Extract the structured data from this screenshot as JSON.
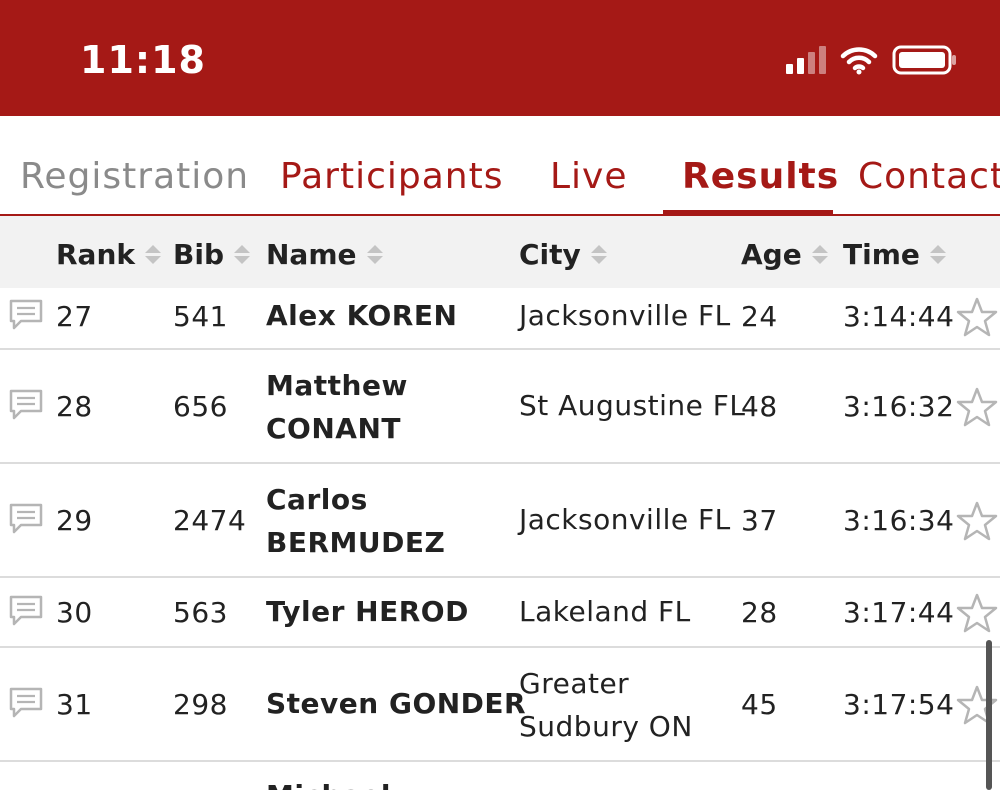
{
  "status_bar": {
    "time": "11:18"
  },
  "tabs": [
    {
      "label": "Registration",
      "state": "inactive"
    },
    {
      "label": "Participants",
      "state": "normal"
    },
    {
      "label": "Live",
      "state": "normal"
    },
    {
      "label": "Results",
      "state": "active"
    },
    {
      "label": "Contact",
      "state": "normal"
    }
  ],
  "table": {
    "columns": [
      "Rank",
      "Bib",
      "Name",
      "City",
      "Age",
      "Time"
    ],
    "rows": [
      {
        "rank": "27",
        "bib": "541",
        "name_l1": "Alex KOREN",
        "name_l2": "",
        "city_l1": "Jacksonville FL",
        "city_l2": "",
        "age": "24",
        "time": "3:14:44"
      },
      {
        "rank": "28",
        "bib": "656",
        "name_l1": "Matthew",
        "name_l2": "CONANT",
        "city_l1": "St Augustine FL",
        "city_l2": "",
        "age": "48",
        "time": "3:16:32"
      },
      {
        "rank": "29",
        "bib": "2474",
        "name_l1": "Carlos",
        "name_l2": "BERMUDEZ",
        "city_l1": "Jacksonville FL",
        "city_l2": "",
        "age": "37",
        "time": "3:16:34"
      },
      {
        "rank": "30",
        "bib": "563",
        "name_l1": "Tyler HEROD",
        "name_l2": "",
        "city_l1": "Lakeland FL",
        "city_l2": "",
        "age": "28",
        "time": "3:17:44"
      },
      {
        "rank": "31",
        "bib": "298",
        "name_l1": "Steven GONDER",
        "name_l2": "",
        "city_l1": "Greater",
        "city_l2": "Sudbury ON",
        "age": "45",
        "time": "3:17:54"
      },
      {
        "rank": "",
        "bib": "",
        "name_l1": "Michael",
        "name_l2": "",
        "city_l1": "",
        "city_l2": "",
        "age": "",
        "time": ""
      }
    ]
  },
  "colors": {
    "brand": "#a51916",
    "header_bg": "#f2f2f2",
    "divider": "#dcdcdc"
  },
  "icons": {
    "row_left": "comment-icon",
    "row_right": "star-icon"
  }
}
